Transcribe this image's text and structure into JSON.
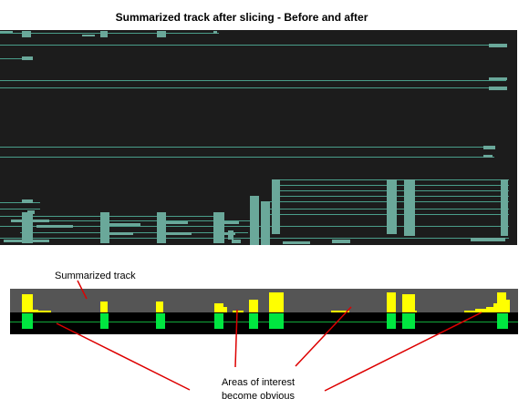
{
  "title": "Summarized track after slicing - Before and after",
  "summary_label": "Summarized track",
  "note_line1": "Areas of interest",
  "note_line2": "become obvious",
  "colors": {
    "track_bg": "#1c1c1c",
    "track_line": "#4a9e8a",
    "track_block": "#6aa89a",
    "summary_top_bg": "#555555",
    "summary_bottom_bg": "#000000",
    "histogram": "#ffff00",
    "green_block": "#00e640",
    "green_line": "#12a83a",
    "arrow": "#dd0000"
  }
}
